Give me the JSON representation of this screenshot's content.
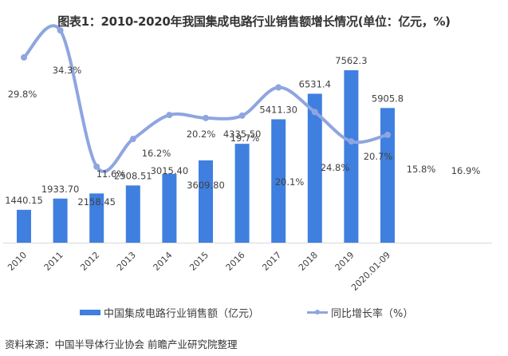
{
  "title": "图表1：2010-2020年我国集成电路行业销售额增长情况(单位：亿元，%)",
  "chart_data": {
    "type": "bar+line",
    "title": "图表1：2010-2020年我国集成电路行业销售额增长情况(单位：亿元，%)",
    "categories": [
      "2010",
      "2011",
      "2012",
      "2013",
      "2014",
      "2015",
      "2016",
      "2017",
      "2018",
      "2019",
      "2020.01-09"
    ],
    "series": [
      {
        "name": "中国集成电路行业销售额（亿元）",
        "type": "bar",
        "axis": "left",
        "color": "#3f7fe0",
        "values": [
          1440.15,
          1933.7,
          2158.45,
          2508.51,
          3015.4,
          3609.8,
          4335.5,
          5411.3,
          6531.4,
          7562.3,
          5905.8
        ],
        "labels": [
          "1440.15",
          "1933.70",
          "2158.45",
          "2508.51",
          "3015.40",
          "3609.80",
          "4335.50",
          "5411.30",
          "6531.4",
          "7562.3",
          "5905.8"
        ]
      },
      {
        "name": "同比增长率（%）",
        "type": "line",
        "axis": "right",
        "smooth": true,
        "color": "#8ea5e0",
        "values": [
          29.8,
          34.3,
          11.6,
          16.2,
          20.2,
          19.7,
          20.1,
          24.8,
          20.7,
          15.8,
          16.9
        ],
        "labels": [
          "29.8%",
          "34.3%",
          "11.6%",
          "16.2%",
          "20.2%",
          "19.7%",
          "20.1%",
          "24.8%",
          "20.7%",
          "15.8%",
          "16.9%"
        ]
      }
    ],
    "xlabel": "",
    "ylabel": "",
    "ylim_left": [
      0,
      8500
    ],
    "ylim_right": [
      -10,
      40
    ],
    "grid": false,
    "axes_visible": false,
    "legend_position": "bottom"
  },
  "legend": {
    "bar_label": "中国集成电路行业销售额（亿元）",
    "line_label": "同比增长率（%）"
  },
  "source": "资料来源：中国半导体行业协会 前瞻产业研究院整理"
}
